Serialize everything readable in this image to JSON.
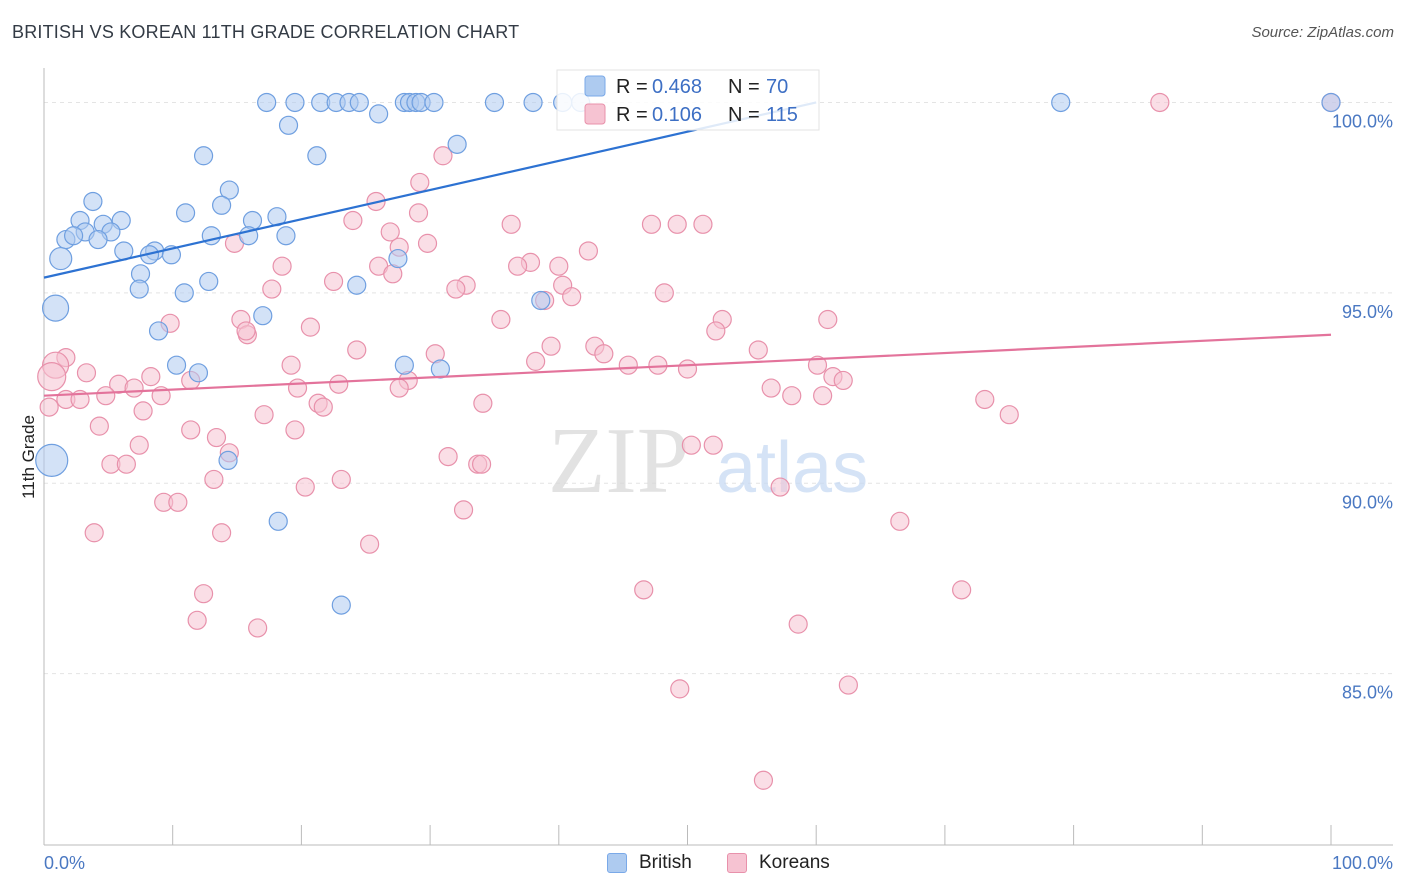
{
  "header": {
    "title": "BRITISH VS KOREAN 11TH GRADE CORRELATION CHART",
    "source": "Source: ZipAtlas.com"
  },
  "watermark": {
    "zip": "ZIP",
    "atlas": "atlas"
  },
  "chart_data": {
    "type": "scatter",
    "title": "BRITISH VS KOREAN 11TH GRADE CORRELATION CHART",
    "xlabel": "",
    "ylabel": "11th Grade",
    "xlim": [
      0,
      100
    ],
    "ylim": [
      80.5,
      100.8
    ],
    "x_tick_labels": [
      "0.0%",
      "100.0%"
    ],
    "y_ticks": [
      {
        "value": 100,
        "label": "100.0%"
      },
      {
        "value": 95,
        "label": "95.0%"
      },
      {
        "value": 90,
        "label": "90.0%"
      },
      {
        "value": 85,
        "label": "85.0%"
      }
    ],
    "grid": true,
    "legend": [
      {
        "name": "British",
        "r_label": "R = ",
        "r": "0.468",
        "n_label": "N = ",
        "n": "70",
        "color": "#7aa9e8",
        "fill": "#aecbf0"
      },
      {
        "name": "Koreans",
        "r_label": "R = ",
        "r": "0.106",
        "n_label": "N = ",
        "n": "115",
        "color": "#e891ab",
        "fill": "#f6c3d2"
      }
    ],
    "series": [
      {
        "name": "British",
        "color": "#6f9fe0",
        "fill": "#aecbf0",
        "trend": {
          "x0": 0,
          "y0": 95.4,
          "x1": 60,
          "y1": 100,
          "color": "#2d72d2"
        },
        "points": [
          [
            17.3,
            100
          ],
          [
            19.5,
            100
          ],
          [
            21.5,
            100
          ],
          [
            22.7,
            100
          ],
          [
            23.7,
            100
          ],
          [
            24.5,
            100
          ],
          [
            28,
            100
          ],
          [
            28.4,
            100
          ],
          [
            28.9,
            100
          ],
          [
            29.3,
            100
          ],
          [
            30.3,
            100
          ],
          [
            35,
            100
          ],
          [
            38,
            100
          ],
          [
            40.3,
            100
          ],
          [
            41.7,
            100
          ],
          [
            79,
            100
          ],
          [
            100,
            100
          ],
          [
            26,
            99.7
          ],
          [
            19,
            99.4
          ],
          [
            32.1,
            98.9
          ],
          [
            12.4,
            98.6
          ],
          [
            21.2,
            98.6
          ],
          [
            14.4,
            97.7
          ],
          [
            3.8,
            97.4
          ],
          [
            11,
            97.1
          ],
          [
            13.8,
            97.3
          ],
          [
            18.1,
            97.0
          ],
          [
            16.2,
            96.9
          ],
          [
            6.0,
            96.9
          ],
          [
            2.8,
            96.9
          ],
          [
            4.6,
            96.8
          ],
          [
            3.2,
            96.6
          ],
          [
            1.7,
            96.4
          ],
          [
            2.3,
            96.5
          ],
          [
            5.2,
            96.6
          ],
          [
            4.2,
            96.4
          ],
          [
            13,
            96.5
          ],
          [
            15.9,
            96.5
          ],
          [
            18.8,
            96.5
          ],
          [
            8.6,
            96.1
          ],
          [
            6.2,
            96.1
          ],
          [
            9.9,
            96.0
          ],
          [
            8.2,
            96.0
          ],
          [
            1.3,
            95.9
          ],
          [
            27.5,
            95.9
          ],
          [
            7.5,
            95.5
          ],
          [
            12.8,
            95.3
          ],
          [
            7.4,
            95.1
          ],
          [
            10.9,
            95.0
          ],
          [
            24.3,
            95.2
          ],
          [
            0.9,
            94.6
          ],
          [
            38.6,
            94.8
          ],
          [
            17.0,
            94.4
          ],
          [
            8.9,
            94.0
          ],
          [
            10.3,
            93.1
          ],
          [
            12.0,
            92.9
          ],
          [
            28.0,
            93.1
          ],
          [
            30.8,
            93.0
          ],
          [
            14.3,
            90.6
          ],
          [
            0.6,
            90.6
          ],
          [
            18.2,
            89.0
          ],
          [
            23.1,
            86.8
          ]
        ]
      },
      {
        "name": "Koreans",
        "color": "#e891ab",
        "fill": "#f6c3d2",
        "trend": {
          "x0": 0,
          "y0": 92.3,
          "x1": 100,
          "y1": 93.9,
          "color": "#e3739b"
        },
        "points": [
          [
            86.7,
            100
          ],
          [
            100,
            100
          ],
          [
            31,
            98.6
          ],
          [
            29.2,
            97.9
          ],
          [
            25.8,
            97.4
          ],
          [
            29.1,
            97.1
          ],
          [
            24,
            96.9
          ],
          [
            36.3,
            96.8
          ],
          [
            47.2,
            96.8
          ],
          [
            49.2,
            96.8
          ],
          [
            51.2,
            96.8
          ],
          [
            26.9,
            96.6
          ],
          [
            29.8,
            96.3
          ],
          [
            14.8,
            96.3
          ],
          [
            27.6,
            96.2
          ],
          [
            42.3,
            96.1
          ],
          [
            37.8,
            95.8
          ],
          [
            40,
            95.7
          ],
          [
            36.8,
            95.7
          ],
          [
            26,
            95.7
          ],
          [
            18.5,
            95.7
          ],
          [
            27.1,
            95.5
          ],
          [
            22.5,
            95.3
          ],
          [
            32.8,
            95.2
          ],
          [
            40.3,
            95.2
          ],
          [
            17.7,
            95.1
          ],
          [
            32.0,
            95.1
          ],
          [
            41.0,
            94.9
          ],
          [
            48.2,
            95.0
          ],
          [
            38.9,
            94.8
          ],
          [
            52.7,
            94.3
          ],
          [
            60.9,
            94.3
          ],
          [
            15.3,
            94.3
          ],
          [
            35.5,
            94.3
          ],
          [
            9.8,
            94.2
          ],
          [
            20.7,
            94.1
          ],
          [
            15.8,
            93.9
          ],
          [
            15.7,
            94.0
          ],
          [
            52.2,
            94.0
          ],
          [
            39.4,
            93.6
          ],
          [
            42.8,
            93.6
          ],
          [
            55.5,
            93.5
          ],
          [
            30.4,
            93.4
          ],
          [
            24.3,
            93.5
          ],
          [
            43.5,
            93.4
          ],
          [
            1.7,
            93.3
          ],
          [
            0.9,
            93.1
          ],
          [
            19.2,
            93.1
          ],
          [
            45.4,
            93.1
          ],
          [
            47.7,
            93.1
          ],
          [
            50.0,
            93.0
          ],
          [
            60.1,
            93.1
          ],
          [
            38.2,
            93.2
          ],
          [
            0.6,
            92.8
          ],
          [
            3.3,
            92.9
          ],
          [
            8.3,
            92.8
          ],
          [
            11.4,
            92.7
          ],
          [
            22.9,
            92.6
          ],
          [
            28.3,
            92.7
          ],
          [
            61.3,
            92.8
          ],
          [
            62.1,
            92.7
          ],
          [
            5.8,
            92.6
          ],
          [
            7.0,
            92.5
          ],
          [
            19.7,
            92.5
          ],
          [
            4.8,
            92.3
          ],
          [
            9.1,
            92.3
          ],
          [
            27.6,
            92.5
          ],
          [
            56.5,
            92.5
          ],
          [
            58.1,
            92.3
          ],
          [
            60.5,
            92.3
          ],
          [
            1.7,
            92.2
          ],
          [
            2.8,
            92.2
          ],
          [
            21.3,
            92.1
          ],
          [
            21.7,
            92.0
          ],
          [
            34.1,
            92.1
          ],
          [
            73.1,
            92.2
          ],
          [
            7.7,
            91.9
          ],
          [
            0.4,
            92.0
          ],
          [
            75.0,
            91.8
          ],
          [
            17.1,
            91.8
          ],
          [
            4.3,
            91.5
          ],
          [
            11.4,
            91.4
          ],
          [
            19.5,
            91.4
          ],
          [
            13.4,
            91.2
          ],
          [
            7.4,
            91.0
          ],
          [
            50.3,
            91.0
          ],
          [
            52.0,
            91.0
          ],
          [
            14.4,
            90.8
          ],
          [
            31.4,
            90.7
          ],
          [
            33.7,
            90.5
          ],
          [
            34.0,
            90.5
          ],
          [
            5.2,
            90.5
          ],
          [
            6.4,
            90.5
          ],
          [
            13.2,
            90.1
          ],
          [
            23.1,
            90.1
          ],
          [
            20.3,
            89.9
          ],
          [
            57.2,
            89.9
          ],
          [
            9.3,
            89.5
          ],
          [
            10.4,
            89.5
          ],
          [
            32.6,
            89.3
          ],
          [
            66.5,
            89.0
          ],
          [
            3.9,
            88.7
          ],
          [
            13.8,
            88.7
          ],
          [
            25.3,
            88.4
          ],
          [
            12.4,
            87.1
          ],
          [
            46.6,
            87.2
          ],
          [
            71.3,
            87.2
          ],
          [
            11.9,
            86.4
          ],
          [
            16.6,
            86.2
          ],
          [
            58.6,
            86.3
          ],
          [
            49.4,
            84.6
          ],
          [
            62.5,
            84.7
          ],
          [
            55.9,
            82.2
          ]
        ]
      }
    ]
  }
}
